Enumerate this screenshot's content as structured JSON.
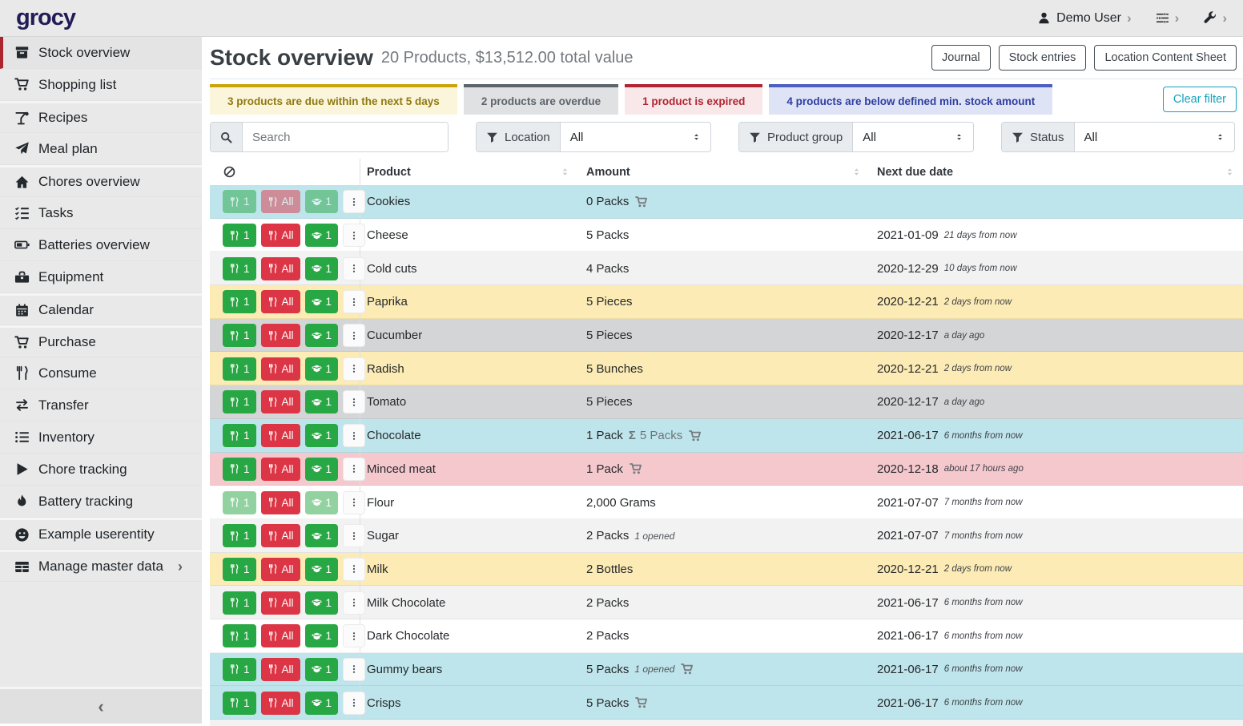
{
  "topbar": {
    "logo": "grocy",
    "user": "Demo User"
  },
  "sidebar": {
    "items": [
      {
        "label": "Stock overview",
        "icon": "box-icon",
        "active": true
      },
      {
        "label": "Shopping list",
        "icon": "shopping-cart-icon"
      },
      {
        "label": "Recipes",
        "icon": "cocktail-icon",
        "gap": true
      },
      {
        "label": "Meal plan",
        "icon": "paper-plane-icon"
      },
      {
        "label": "Chores overview",
        "icon": "home-icon",
        "gap": true
      },
      {
        "label": "Tasks",
        "icon": "checklist-icon"
      },
      {
        "label": "Batteries overview",
        "icon": "battery-icon"
      },
      {
        "label": "Equipment",
        "icon": "toolbox-icon"
      },
      {
        "label": "Calendar",
        "icon": "calendar-icon",
        "gap": true
      },
      {
        "label": "Purchase",
        "icon": "shopping-cart-icon",
        "gap": true
      },
      {
        "label": "Consume",
        "icon": "utensils-icon"
      },
      {
        "label": "Transfer",
        "icon": "transfer-icon"
      },
      {
        "label": "Inventory",
        "icon": "list-icon"
      },
      {
        "label": "Chore tracking",
        "icon": "play-icon"
      },
      {
        "label": "Battery tracking",
        "icon": "fire-icon"
      },
      {
        "label": "Example userentity",
        "icon": "smiley-icon",
        "gap": true
      },
      {
        "label": "Manage master data",
        "icon": "table-icon",
        "gap": true,
        "chevron": true
      }
    ],
    "collapse_glyph": "‹"
  },
  "page": {
    "title": "Stock overview",
    "subtitle": "20 Products, $13,512.00 total value",
    "actions": {
      "journal": "Journal",
      "stock_entries": "Stock entries",
      "location_sheet": "Location Content Sheet"
    }
  },
  "alerts": {
    "due_soon": "3 products are due within the next 5 days",
    "overdue": "2 products are overdue",
    "expired": "1 product is expired",
    "below_min": "4 products are below defined min. stock amount",
    "clear_filter": "Clear filter"
  },
  "filters": {
    "search_placeholder": "Search",
    "location_label": "Location",
    "location_value": "All",
    "group_label": "Product group",
    "group_value": "All",
    "status_label": "Status",
    "status_value": "All"
  },
  "table": {
    "headers": {
      "product": "Product",
      "amount": "Amount",
      "due": "Next due date"
    },
    "buttons": {
      "consume_one": "1",
      "consume_all": "All",
      "open_one": "1"
    },
    "rows": [
      {
        "product": "Cookies",
        "amount": "0 Packs",
        "cart": true,
        "variant": "info",
        "m1": true,
        "m2": true,
        "m3": true,
        "date": "",
        "note": ""
      },
      {
        "product": "Cheese",
        "amount": "5 Packs",
        "variant": "white",
        "date": "2021-01-09",
        "note": "21 days from now"
      },
      {
        "product": "Cold cuts",
        "amount": "4 Packs",
        "variant": "stripe",
        "date": "2020-12-29",
        "note": "10 days from now"
      },
      {
        "product": "Paprika",
        "amount": "5 Pieces",
        "variant": "warning",
        "date": "2020-12-21",
        "note": "2 days from now"
      },
      {
        "product": "Cucumber",
        "amount": "5 Pieces",
        "variant": "overdue",
        "date": "2020-12-17",
        "note": "a day ago"
      },
      {
        "product": "Radish",
        "amount": "5 Bunches",
        "variant": "warning",
        "date": "2020-12-21",
        "note": "2 days from now"
      },
      {
        "product": "Tomato",
        "amount": "5 Pieces",
        "variant": "overdue",
        "date": "2020-12-17",
        "note": "a day ago"
      },
      {
        "product": "Chocolate",
        "amount": "1 Pack",
        "sum": "5 Packs",
        "cart": true,
        "variant": "info",
        "date": "2021-06-17",
        "note": "6 months from now"
      },
      {
        "product": "Minced meat",
        "amount": "1 Pack",
        "cart": true,
        "variant": "expired",
        "date": "2020-12-18",
        "note": "about 17 hours ago"
      },
      {
        "product": "Flour",
        "amount": "2,000 Grams",
        "variant": "white",
        "m1": true,
        "m3": true,
        "date": "2021-07-07",
        "note": "7 months from now"
      },
      {
        "product": "Sugar",
        "amount": "2 Packs",
        "opened": "1 opened",
        "variant": "stripe",
        "date": "2021-07-07",
        "note": "7 months from now"
      },
      {
        "product": "Milk",
        "amount": "2 Bottles",
        "variant": "warning",
        "date": "2020-12-21",
        "note": "2 days from now"
      },
      {
        "product": "Milk Chocolate",
        "amount": "2 Packs",
        "variant": "stripe",
        "date": "2021-06-17",
        "note": "6 months from now"
      },
      {
        "product": "Dark Chocolate",
        "amount": "2 Packs",
        "variant": "white",
        "date": "2021-06-17",
        "note": "6 months from now"
      },
      {
        "product": "Gummy bears",
        "amount": "5 Packs",
        "opened": "1 opened",
        "cart": true,
        "variant": "info",
        "date": "2021-06-17",
        "note": "6 months from now"
      },
      {
        "product": "Crisps",
        "amount": "5 Packs",
        "cart": true,
        "variant": "info",
        "date": "2021-06-17",
        "note": "6 months from now"
      }
    ]
  }
}
